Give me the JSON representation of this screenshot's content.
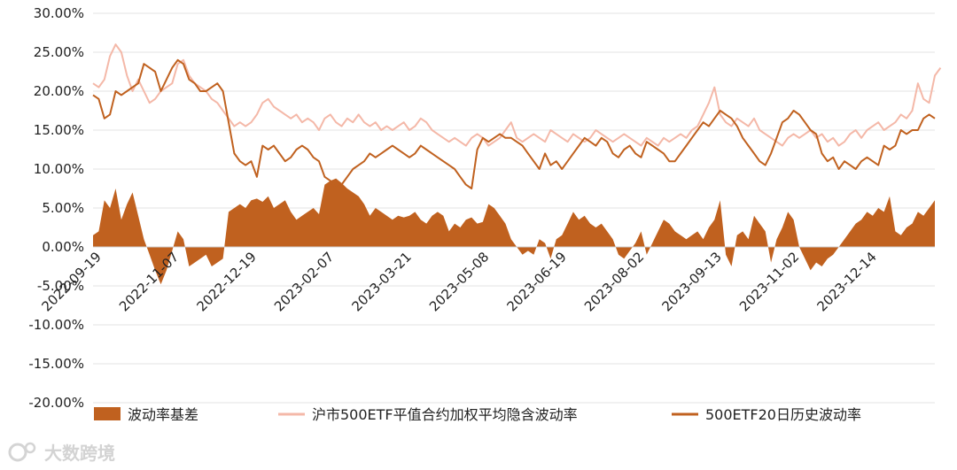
{
  "chart_data": {
    "type": "line",
    "title": "",
    "xlabel": "",
    "ylabel": "",
    "ylim": [
      -0.2,
      0.3
    ],
    "y_tick_labels": [
      "30.00%",
      "25.00%",
      "20.00%",
      "15.00%",
      "10.00%",
      "5.00%",
      "0.00%",
      "-5.00%",
      "-10.00%",
      "-15.00%",
      "-20.00%"
    ],
    "x_tick_labels": [
      "2022-09-19",
      "2022-11-07",
      "2022-12-19",
      "2023-02-07",
      "2023-03-21",
      "2023-05-08",
      "2023-06-19",
      "2023-08-02",
      "2023-09-13",
      "2023-11-02",
      "2023-12-14"
    ],
    "grid": true,
    "legend_position": "bottom",
    "series": [
      {
        "name": "波动率基差",
        "kind": "area",
        "color": "#c0611f",
        "values": [
          0.015,
          0.02,
          0.06,
          0.05,
          0.075,
          0.035,
          0.055,
          0.07,
          0.04,
          0.01,
          -0.01,
          -0.03,
          -0.048,
          -0.03,
          -0.005,
          0.02,
          0.01,
          -0.025,
          -0.02,
          -0.015,
          -0.01,
          -0.025,
          -0.02,
          -0.015,
          0.045,
          0.05,
          0.055,
          0.05,
          0.06,
          0.062,
          0.058,
          0.065,
          0.05,
          0.055,
          0.06,
          0.045,
          0.035,
          0.04,
          0.045,
          0.05,
          0.042,
          0.08,
          0.085,
          0.088,
          0.082,
          0.075,
          0.07,
          0.065,
          0.055,
          0.04,
          0.05,
          0.045,
          0.04,
          0.035,
          0.04,
          0.038,
          0.04,
          0.045,
          0.035,
          0.03,
          0.04,
          0.045,
          0.04,
          0.02,
          0.03,
          0.025,
          0.035,
          0.038,
          0.03,
          0.032,
          0.055,
          0.05,
          0.04,
          0.03,
          0.01,
          0.0,
          -0.01,
          -0.005,
          -0.01,
          0.01,
          0.005,
          -0.015,
          0.01,
          0.015,
          0.03,
          0.045,
          0.035,
          0.04,
          0.03,
          0.025,
          0.03,
          0.02,
          0.01,
          -0.01,
          -0.015,
          -0.005,
          0.005,
          0.02,
          -0.01,
          0.005,
          0.02,
          0.035,
          0.03,
          0.02,
          0.015,
          0.01,
          0.015,
          0.02,
          0.01,
          0.025,
          0.035,
          0.06,
          -0.01,
          -0.025,
          0.015,
          0.02,
          0.01,
          0.04,
          0.03,
          0.02,
          -0.02,
          0.01,
          0.025,
          0.045,
          0.035,
          0.0,
          -0.015,
          -0.03,
          -0.02,
          -0.025,
          -0.015,
          -0.01,
          0.0,
          0.01,
          0.02,
          0.03,
          0.035,
          0.045,
          0.04,
          0.05,
          0.045,
          0.065,
          0.02,
          0.015,
          0.025,
          0.03,
          0.045,
          0.04,
          0.05,
          0.06
        ]
      },
      {
        "name": "沪市500ETF平值合约加权平均隐含波动率",
        "kind": "line",
        "color": "#f4b8a8",
        "values": [
          0.21,
          0.205,
          0.215,
          0.245,
          0.26,
          0.25,
          0.22,
          0.2,
          0.215,
          0.2,
          0.185,
          0.19,
          0.2,
          0.205,
          0.21,
          0.235,
          0.24,
          0.22,
          0.21,
          0.205,
          0.2,
          0.19,
          0.185,
          0.175,
          0.165,
          0.155,
          0.16,
          0.155,
          0.16,
          0.17,
          0.185,
          0.19,
          0.18,
          0.175,
          0.17,
          0.165,
          0.17,
          0.16,
          0.165,
          0.16,
          0.15,
          0.165,
          0.17,
          0.16,
          0.155,
          0.165,
          0.16,
          0.17,
          0.16,
          0.155,
          0.16,
          0.15,
          0.155,
          0.15,
          0.155,
          0.16,
          0.15,
          0.155,
          0.165,
          0.16,
          0.15,
          0.145,
          0.14,
          0.135,
          0.14,
          0.135,
          0.13,
          0.14,
          0.145,
          0.14,
          0.13,
          0.135,
          0.14,
          0.15,
          0.16,
          0.14,
          0.135,
          0.14,
          0.145,
          0.14,
          0.135,
          0.15,
          0.145,
          0.14,
          0.135,
          0.145,
          0.14,
          0.135,
          0.14,
          0.15,
          0.145,
          0.14,
          0.135,
          0.14,
          0.145,
          0.14,
          0.135,
          0.13,
          0.14,
          0.135,
          0.13,
          0.14,
          0.135,
          0.14,
          0.145,
          0.14,
          0.15,
          0.155,
          0.17,
          0.185,
          0.205,
          0.17,
          0.16,
          0.155,
          0.165,
          0.16,
          0.155,
          0.165,
          0.15,
          0.145,
          0.14,
          0.135,
          0.13,
          0.14,
          0.145,
          0.14,
          0.145,
          0.15,
          0.14,
          0.145,
          0.135,
          0.14,
          0.13,
          0.135,
          0.145,
          0.15,
          0.14,
          0.15,
          0.155,
          0.16,
          0.15,
          0.155,
          0.16,
          0.17,
          0.165,
          0.175,
          0.21,
          0.19,
          0.185,
          0.22,
          0.23
        ]
      },
      {
        "name": "500ETF20日历史波动率",
        "kind": "line",
        "color": "#c0611f",
        "values": [
          0.195,
          0.19,
          0.165,
          0.17,
          0.2,
          0.195,
          0.2,
          0.205,
          0.21,
          0.235,
          0.23,
          0.225,
          0.2,
          0.215,
          0.23,
          0.24,
          0.235,
          0.215,
          0.21,
          0.2,
          0.2,
          0.205,
          0.21,
          0.2,
          0.16,
          0.12,
          0.11,
          0.105,
          0.11,
          0.09,
          0.13,
          0.125,
          0.13,
          0.12,
          0.11,
          0.115,
          0.125,
          0.13,
          0.125,
          0.115,
          0.11,
          0.09,
          0.085,
          0.075,
          0.08,
          0.09,
          0.1,
          0.105,
          0.11,
          0.12,
          0.115,
          0.12,
          0.125,
          0.13,
          0.125,
          0.12,
          0.115,
          0.12,
          0.13,
          0.125,
          0.12,
          0.115,
          0.11,
          0.105,
          0.1,
          0.09,
          0.08,
          0.075,
          0.125,
          0.14,
          0.135,
          0.14,
          0.145,
          0.14,
          0.14,
          0.135,
          0.13,
          0.12,
          0.11,
          0.1,
          0.12,
          0.105,
          0.11,
          0.1,
          0.11,
          0.12,
          0.13,
          0.14,
          0.135,
          0.13,
          0.14,
          0.135,
          0.12,
          0.115,
          0.125,
          0.13,
          0.12,
          0.115,
          0.135,
          0.13,
          0.125,
          0.12,
          0.11,
          0.11,
          0.12,
          0.13,
          0.14,
          0.15,
          0.16,
          0.155,
          0.165,
          0.175,
          0.17,
          0.165,
          0.155,
          0.14,
          0.13,
          0.12,
          0.11,
          0.105,
          0.12,
          0.14,
          0.16,
          0.165,
          0.175,
          0.17,
          0.16,
          0.15,
          0.145,
          0.12,
          0.11,
          0.115,
          0.1,
          0.11,
          0.105,
          0.1,
          0.11,
          0.115,
          0.11,
          0.105,
          0.13,
          0.125,
          0.13,
          0.15,
          0.145,
          0.15,
          0.15,
          0.165,
          0.17,
          0.165
        ]
      }
    ]
  },
  "watermark": {
    "text": "大数跨境"
  }
}
